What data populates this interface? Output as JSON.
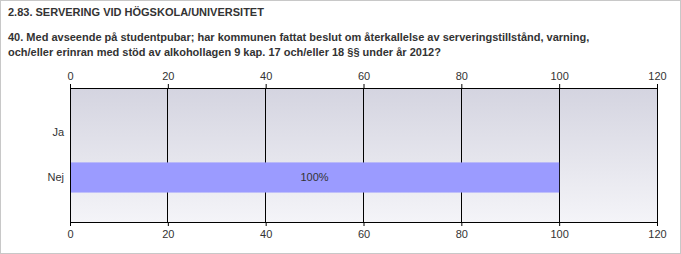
{
  "chart_data": {
    "type": "bar",
    "orientation": "horizontal",
    "title": "2.83. SERVERING VID HÖGSKOLA/UNIVERSITET",
    "subtitle": "40. Med avseende på studentpubar; har kommunen fattat beslut om återkallelse av serveringstillstånd, varning, och/eller erinran med stöd av alkohollagen 9 kap. 17 och/eller 18 §§ under år 2012?",
    "categories": [
      "Ja",
      "Nej"
    ],
    "values": [
      0,
      100
    ],
    "value_labels": [
      null,
      "100%"
    ],
    "data_labels": true,
    "color": "#9b9bff",
    "xlim": [
      0,
      120
    ],
    "xticks": [
      0,
      20,
      40,
      60,
      80,
      100,
      120
    ],
    "grid": true
  }
}
